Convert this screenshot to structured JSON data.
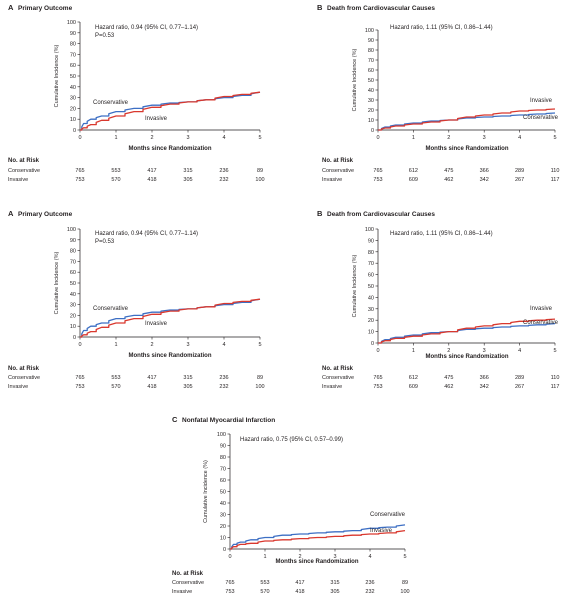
{
  "chart_data": [
    {
      "type": "line",
      "panel": "A",
      "title": "Primary Outcome",
      "annotation": [
        "Hazard ratio, 0.94 (95% CI, 0.77–1.14)",
        "P=0.53"
      ],
      "xlabel": "Months since Randomization",
      "ylabel": "Cumulative Incidence (%)",
      "xlim": [
        0,
        5
      ],
      "ylim": [
        0,
        100
      ],
      "x_ticks": [
        0,
        1,
        2,
        3,
        4,
        5
      ],
      "y_ticks": [
        0,
        10,
        20,
        30,
        40,
        50,
        60,
        70,
        80,
        90,
        100
      ],
      "series": [
        {
          "name": "Conservative",
          "color": "#3d6fc4",
          "x": [
            0,
            0.1,
            0.3,
            0.6,
            1.0,
            1.5,
            2.0,
            2.5,
            3.0,
            3.5,
            4.0,
            4.5,
            5.0
          ],
          "y": [
            0,
            6,
            10,
            13,
            17,
            20,
            23,
            25,
            26,
            28,
            30,
            32,
            35
          ]
        },
        {
          "name": "Invasive",
          "color": "#d9382e",
          "x": [
            0,
            0.1,
            0.3,
            0.6,
            1.0,
            1.5,
            2.0,
            2.5,
            3.0,
            3.5,
            4.0,
            4.5,
            5.0
          ],
          "y": [
            0,
            2,
            5,
            9,
            13,
            17,
            21,
            24,
            26,
            28,
            31,
            33,
            35
          ]
        }
      ],
      "series_labels": {
        "Conservative": "Conservative",
        "Invasive": "Invasive"
      },
      "risk": {
        "header": "No. at Risk",
        "rows": [
          {
            "label": "Conservative",
            "values": [
              "765",
              "553",
              "417",
              "315",
              "236",
              "89"
            ]
          },
          {
            "label": "Invasive",
            "values": [
              "753",
              "570",
              "418",
              "305",
              "232",
              "100"
            ]
          }
        ]
      }
    },
    {
      "type": "line",
      "panel": "B",
      "title": "Death from Cardiovascular Causes",
      "annotation": [
        "Hazard ratio, 1.11 (95% CI, 0.86–1.44)"
      ],
      "xlabel": "Months since Randomization",
      "ylabel": "Cumulative Incidence (%)",
      "xlim": [
        0,
        5
      ],
      "ylim": [
        0,
        100
      ],
      "x_ticks": [
        0,
        1,
        2,
        3,
        4,
        5
      ],
      "y_ticks": [
        0,
        10,
        20,
        30,
        40,
        50,
        60,
        70,
        80,
        90,
        100
      ],
      "series": [
        {
          "name": "Conservative",
          "color": "#3d6fc4",
          "x": [
            0,
            0.2,
            0.5,
            1.0,
            1.5,
            2.0,
            2.5,
            3.0,
            3.5,
            4.0,
            4.5,
            5.0
          ],
          "y": [
            0,
            3,
            5,
            7,
            9,
            10,
            12,
            13,
            14,
            15,
            16,
            17
          ]
        },
        {
          "name": "Invasive",
          "color": "#d9382e",
          "x": [
            0,
            0.2,
            0.5,
            1.0,
            1.5,
            2.0,
            2.5,
            3.0,
            3.5,
            4.0,
            4.5,
            5.0
          ],
          "y": [
            0,
            2,
            4,
            6,
            8,
            10,
            13,
            15,
            17,
            19,
            20,
            21
          ]
        }
      ],
      "series_labels": {
        "Conservative": "Conservative",
        "Invasive": "Invasive"
      },
      "risk": {
        "header": "No. at Risk",
        "rows": [
          {
            "label": "Conservative",
            "values": [
              "765",
              "612",
              "475",
              "366",
              "289",
              "110"
            ]
          },
          {
            "label": "Invasive",
            "values": [
              "753",
              "609",
              "462",
              "342",
              "267",
              "117"
            ]
          }
        ]
      }
    },
    {
      "type": "line",
      "panel": "A",
      "title": "Primary Outcome",
      "annotation": [
        "Hazard ratio, 0.94 (95% CI, 0.77–1.14)",
        "P=0.53"
      ],
      "xlabel": "Months since Randomization",
      "ylabel": "Cumulative Incidence (%)",
      "xlim": [
        0,
        5
      ],
      "ylim": [
        0,
        100
      ],
      "x_ticks": [
        0,
        1,
        2,
        3,
        4,
        5
      ],
      "y_ticks": [
        0,
        10,
        20,
        30,
        40,
        50,
        60,
        70,
        80,
        90,
        100
      ],
      "series": [
        {
          "name": "Conservative",
          "color": "#3d6fc4",
          "x": [
            0,
            0.1,
            0.3,
            0.6,
            1.0,
            1.5,
            2.0,
            2.5,
            3.0,
            3.5,
            4.0,
            4.5,
            5.0
          ],
          "y": [
            0,
            6,
            10,
            13,
            17,
            20,
            23,
            25,
            26,
            28,
            30,
            32,
            35
          ]
        },
        {
          "name": "Invasive",
          "color": "#d9382e",
          "x": [
            0,
            0.1,
            0.3,
            0.6,
            1.0,
            1.5,
            2.0,
            2.5,
            3.0,
            3.5,
            4.0,
            4.5,
            5.0
          ],
          "y": [
            0,
            2,
            5,
            9,
            13,
            17,
            21,
            24,
            26,
            28,
            31,
            33,
            35
          ]
        }
      ],
      "series_labels": {
        "Conservative": "Conservative",
        "Invasive": "Invasive"
      },
      "risk": {
        "header": "No. at Risk",
        "rows": [
          {
            "label": "Conservative",
            "values": [
              "765",
              "553",
              "417",
              "315",
              "236",
              "89"
            ]
          },
          {
            "label": "Invasive",
            "values": [
              "753",
              "570",
              "418",
              "305",
              "232",
              "100"
            ]
          }
        ]
      }
    },
    {
      "type": "line",
      "panel": "B",
      "title": "Death from Cardiovascular Causes",
      "annotation": [
        "Hazard ratio, 1.11 (95% CI, 0.86–1.44)"
      ],
      "xlabel": "Months since Randomization",
      "ylabel": "Cumulative Incidence (%)",
      "xlim": [
        0,
        5
      ],
      "ylim": [
        0,
        100
      ],
      "x_ticks": [
        0,
        1,
        2,
        3,
        4,
        5
      ],
      "y_ticks": [
        0,
        10,
        20,
        30,
        40,
        50,
        60,
        70,
        80,
        90,
        100
      ],
      "series": [
        {
          "name": "Conservative",
          "color": "#3d6fc4",
          "x": [
            0,
            0.2,
            0.5,
            1.0,
            1.5,
            2.0,
            2.5,
            3.0,
            3.5,
            4.0,
            4.5,
            5.0
          ],
          "y": [
            0,
            3,
            5,
            7,
            9,
            10,
            12,
            13,
            14,
            15,
            16,
            17
          ]
        },
        {
          "name": "Invasive",
          "color": "#d9382e",
          "x": [
            0,
            0.2,
            0.5,
            1.0,
            1.5,
            2.0,
            2.5,
            3.0,
            3.5,
            4.0,
            4.5,
            5.0
          ],
          "y": [
            0,
            2,
            4,
            6,
            8,
            10,
            13,
            15,
            17,
            19,
            20,
            21
          ]
        }
      ],
      "series_labels": {
        "Conservative": "Conservative",
        "Invasive": "Invasive"
      },
      "risk": {
        "header": "No. at Risk",
        "rows": [
          {
            "label": "Conservative",
            "values": [
              "765",
              "612",
              "475",
              "366",
              "289",
              "110"
            ]
          },
          {
            "label": "Invasive",
            "values": [
              "753",
              "609",
              "462",
              "342",
              "267",
              "117"
            ]
          }
        ]
      }
    },
    {
      "type": "line",
      "panel": "C",
      "title": "Nonfatal Myocardial Infarction",
      "annotation": [
        "Hazard ratio, 0.75 (95% CI, 0.57–0.99)"
      ],
      "xlabel": "Months since Randomization",
      "ylabel": "Cumulative Incidence (%)",
      "xlim": [
        0,
        5
      ],
      "ylim": [
        0,
        100
      ],
      "x_ticks": [
        0,
        1,
        2,
        3,
        4,
        5
      ],
      "y_ticks": [
        0,
        10,
        20,
        30,
        40,
        50,
        60,
        70,
        80,
        90,
        100
      ],
      "series": [
        {
          "name": "Conservative",
          "color": "#3d6fc4",
          "x": [
            0,
            0.1,
            0.3,
            0.6,
            1.0,
            1.5,
            2.0,
            2.5,
            3.0,
            3.5,
            4.0,
            4.5,
            5.0
          ],
          "y": [
            0,
            4,
            6,
            8,
            10,
            12,
            13,
            14,
            15,
            16,
            18,
            19,
            21
          ]
        },
        {
          "name": "Invasive",
          "color": "#d9382e",
          "x": [
            0,
            0.1,
            0.3,
            0.6,
            1.0,
            1.5,
            2.0,
            2.5,
            3.0,
            3.5,
            4.0,
            4.5,
            5.0
          ],
          "y": [
            0,
            2,
            4,
            5,
            7,
            8,
            9,
            10,
            11,
            12,
            13,
            14,
            16
          ]
        }
      ],
      "series_labels": {
        "Conservative": "Conservative",
        "Invasive": "Invasive"
      },
      "risk": {
        "header": "No. at Risk",
        "rows": [
          {
            "label": "Conservative",
            "values": [
              "765",
              "553",
              "417",
              "315",
              "236",
              "89"
            ]
          },
          {
            "label": "Invasive",
            "values": [
              "753",
              "570",
              "418",
              "305",
              "232",
              "100"
            ]
          }
        ]
      }
    }
  ]
}
